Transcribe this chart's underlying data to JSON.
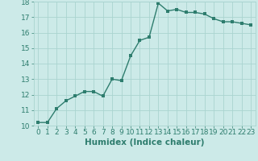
{
  "x": [
    0,
    1,
    2,
    3,
    4,
    5,
    6,
    7,
    8,
    9,
    10,
    11,
    12,
    13,
    14,
    15,
    16,
    17,
    18,
    19,
    20,
    21,
    22,
    23
  ],
  "y": [
    10.2,
    10.2,
    11.1,
    11.6,
    11.9,
    12.2,
    12.2,
    11.9,
    13.0,
    12.9,
    14.5,
    15.5,
    15.7,
    17.9,
    17.4,
    17.5,
    17.3,
    17.3,
    17.2,
    16.9,
    16.7,
    16.7,
    16.6,
    16.5
  ],
  "line_color": "#2e7d6e",
  "marker_color": "#2e7d6e",
  "bg_color": "#cceae8",
  "grid_color": "#aad4d0",
  "xlabel": "Humidex (Indice chaleur)",
  "xlim": [
    -0.5,
    23.5
  ],
  "ylim": [
    10,
    18
  ],
  "yticks": [
    10,
    11,
    12,
    13,
    14,
    15,
    16,
    17,
    18
  ],
  "xticks": [
    0,
    1,
    2,
    3,
    4,
    5,
    6,
    7,
    8,
    9,
    10,
    11,
    12,
    13,
    14,
    15,
    16,
    17,
    18,
    19,
    20,
    21,
    22,
    23
  ],
  "font_color": "#2e7d6e",
  "tick_fontsize": 6.5,
  "xlabel_fontsize": 7.5,
  "linewidth": 1.0,
  "markersize": 2.5
}
